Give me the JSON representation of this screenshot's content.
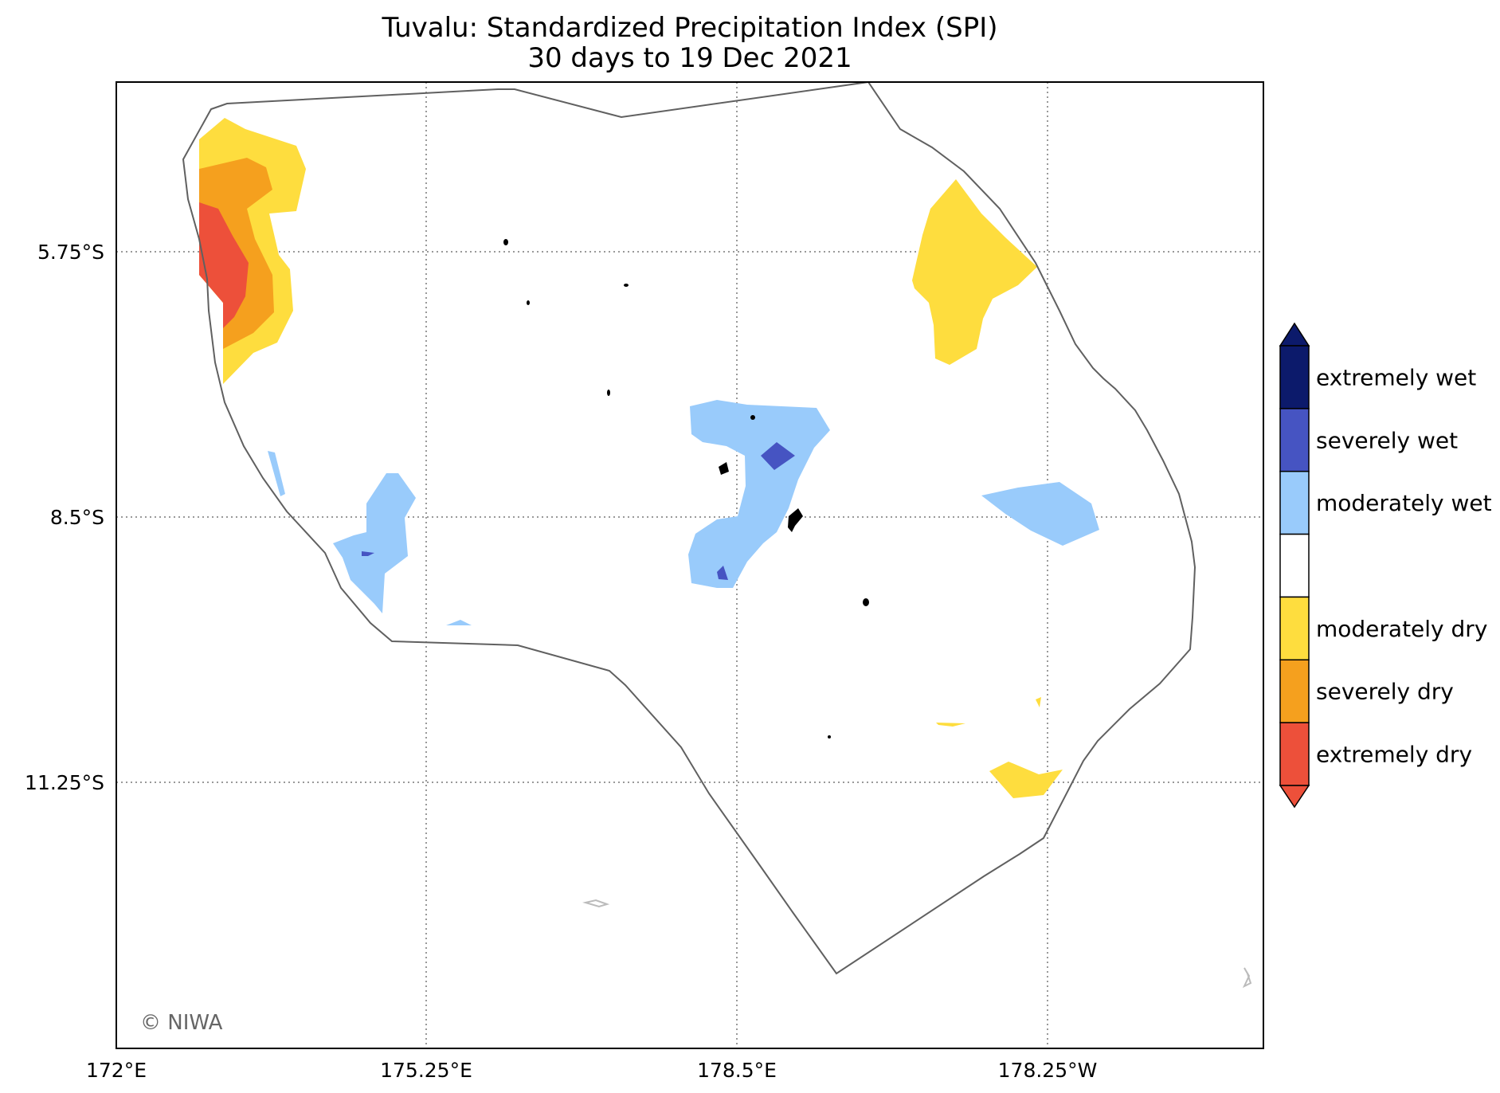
{
  "map": {
    "title_line_1": "Tuvalu: Standardized Precipitation Index (SPI)",
    "title_line_2": "30 days to 19 Dec 2021",
    "credit": "© NIWA",
    "x_ticks": [
      "172°E",
      "175.25°E",
      "178.5°E",
      "178.25°W"
    ],
    "y_ticks": [
      "5.75°S",
      "8.5°S",
      "11.25°S"
    ],
    "gridlines": "dotted",
    "colors": {
      "extremely_wet": "#0c1a6b",
      "severely_wet": "#4654c2",
      "moderately_wet": "#99cbfb",
      "normal": "#ffffff",
      "moderately_dry": "#fedd3e",
      "severely_dry": "#f5a01e",
      "extremely_dry": "#ed503a",
      "eez_boundary": "#606060",
      "land": "#000000",
      "outside_land": "#bbbbbb"
    }
  },
  "legend": {
    "items": [
      {
        "label": "extremely wet",
        "color": "#0c1a6b"
      },
      {
        "label": "severely wet",
        "color": "#4654c2"
      },
      {
        "label": "moderately wet",
        "color": "#99cbfb"
      },
      {
        "label": "",
        "color": "#ffffff"
      },
      {
        "label": "moderately dry",
        "color": "#fedd3e"
      },
      {
        "label": "severely dry",
        "color": "#f5a01e"
      },
      {
        "label": "extremely dry",
        "color": "#ed503a"
      }
    ]
  }
}
